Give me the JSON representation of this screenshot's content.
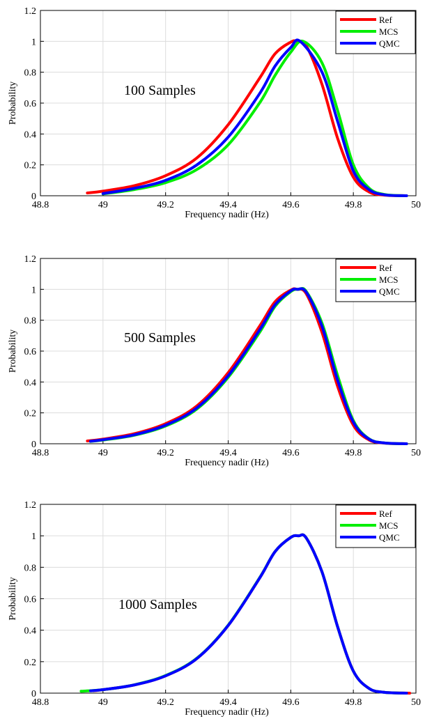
{
  "chart_data": [
    {
      "type": "line",
      "annotation": "100 Samples",
      "xlabel": "Frequency nadir  (Hz)",
      "ylabel": "Probability",
      "xlim": [
        48.8,
        50
      ],
      "ylim": [
        0,
        1.2
      ],
      "xticks": [
        48.8,
        49,
        49.2,
        49.4,
        49.6,
        49.8,
        50
      ],
      "xtick_labels": [
        "48.8",
        "49",
        "49.2",
        "49.4",
        "49.6",
        "49.8",
        "50"
      ],
      "yticks": [
        0,
        0.2,
        0.4,
        0.6,
        0.8,
        1,
        1.2
      ],
      "ytick_labels": [
        "0",
        "0.2",
        "0.4",
        "0.6",
        "0.8",
        "1",
        "1.2"
      ],
      "grid": true,
      "legend_position": "top-right",
      "series": [
        {
          "name": "Ref",
          "color": "#ff0000",
          "x": [
            48.95,
            49.0,
            49.1,
            49.2,
            49.3,
            49.4,
            49.5,
            49.55,
            49.6,
            49.62,
            49.65,
            49.7,
            49.75,
            49.8,
            49.85,
            49.9,
            49.97
          ],
          "y": [
            0.018,
            0.03,
            0.065,
            0.13,
            0.245,
            0.46,
            0.76,
            0.92,
            0.995,
            1.0,
            0.97,
            0.72,
            0.37,
            0.12,
            0.025,
            0.004,
            0.0
          ]
        },
        {
          "name": "MCS",
          "color": "#00ee00",
          "x": [
            49.0,
            49.1,
            49.2,
            49.3,
            49.4,
            49.5,
            49.55,
            49.6,
            49.64,
            49.7,
            49.75,
            49.8,
            49.85,
            49.9,
            49.97
          ],
          "y": [
            0.012,
            0.04,
            0.085,
            0.17,
            0.33,
            0.6,
            0.78,
            0.93,
            1.0,
            0.86,
            0.55,
            0.2,
            0.05,
            0.008,
            0.0
          ]
        },
        {
          "name": "QMC",
          "color": "#0000ff",
          "x": [
            49.0,
            49.1,
            49.2,
            49.3,
            49.4,
            49.5,
            49.55,
            49.6,
            49.63,
            49.7,
            49.75,
            49.8,
            49.85,
            49.9,
            49.97
          ],
          "y": [
            0.014,
            0.048,
            0.1,
            0.2,
            0.38,
            0.66,
            0.84,
            0.96,
            1.0,
            0.8,
            0.48,
            0.16,
            0.04,
            0.006,
            0.0
          ]
        }
      ]
    },
    {
      "type": "line",
      "annotation": "500 Samples",
      "xlabel": "Frequency nadir  (Hz)",
      "ylabel": "Probability",
      "xlim": [
        48.8,
        50
      ],
      "ylim": [
        0,
        1.2
      ],
      "xticks": [
        48.8,
        49,
        49.2,
        49.4,
        49.6,
        49.8,
        50
      ],
      "xtick_labels": [
        "48.8",
        "49",
        "49.2",
        "49.4",
        "49.6",
        "49.8",
        "50"
      ],
      "yticks": [
        0,
        0.2,
        0.4,
        0.6,
        0.8,
        1,
        1.2
      ],
      "ytick_labels": [
        "0",
        "0.2",
        "0.4",
        "0.6",
        "0.8",
        "1",
        "1.2"
      ],
      "grid": true,
      "legend_position": "top-right",
      "series": [
        {
          "name": "Ref",
          "color": "#ff0000",
          "x": [
            48.95,
            49.0,
            49.1,
            49.2,
            49.3,
            49.4,
            49.5,
            49.55,
            49.6,
            49.62,
            49.65,
            49.7,
            49.75,
            49.8,
            49.85,
            49.9,
            49.97
          ],
          "y": [
            0.018,
            0.03,
            0.065,
            0.13,
            0.245,
            0.46,
            0.76,
            0.92,
            0.995,
            1.0,
            0.97,
            0.72,
            0.37,
            0.12,
            0.025,
            0.004,
            0.0
          ]
        },
        {
          "name": "MCS",
          "color": "#00ee00",
          "x": [
            48.96,
            49.0,
            49.1,
            49.2,
            49.3,
            49.4,
            49.5,
            49.55,
            49.6,
            49.625,
            49.65,
            49.7,
            49.75,
            49.8,
            49.85,
            49.9,
            49.97
          ],
          "y": [
            0.015,
            0.024,
            0.055,
            0.115,
            0.225,
            0.43,
            0.72,
            0.89,
            0.985,
            1.0,
            0.985,
            0.78,
            0.44,
            0.15,
            0.032,
            0.005,
            0.0
          ]
        },
        {
          "name": "QMC",
          "color": "#0000ff",
          "x": [
            48.96,
            49.0,
            49.1,
            49.2,
            49.3,
            49.4,
            49.5,
            49.55,
            49.6,
            49.62,
            49.65,
            49.7,
            49.75,
            49.8,
            49.85,
            49.9,
            49.97
          ],
          "y": [
            0.016,
            0.026,
            0.058,
            0.12,
            0.232,
            0.44,
            0.735,
            0.9,
            0.99,
            1.0,
            0.98,
            0.76,
            0.41,
            0.14,
            0.03,
            0.005,
            0.0
          ]
        }
      ]
    },
    {
      "type": "line",
      "annotation": "1000 Samples",
      "xlabel": "Frequency nadir  (Hz)",
      "ylabel": "Probability",
      "xlim": [
        48.8,
        50
      ],
      "ylim": [
        0,
        1.2
      ],
      "xticks": [
        48.8,
        49,
        49.2,
        49.4,
        49.6,
        49.8,
        50
      ],
      "xtick_labels": [
        "48.8",
        "49",
        "49.2",
        "49.4",
        "49.6",
        "49.8",
        "50"
      ],
      "yticks": [
        0,
        0.2,
        0.4,
        0.6,
        0.8,
        1,
        1.2
      ],
      "ytick_labels": [
        "0",
        "0.2",
        "0.4",
        "0.6",
        "0.8",
        "1",
        "1.2"
      ],
      "grid": true,
      "legend_position": "top-right",
      "series": [
        {
          "name": "Ref",
          "color": "#ff0000",
          "x": [
            48.97,
            49.0,
            49.1,
            49.2,
            49.3,
            49.4,
            49.5,
            49.55,
            49.6,
            49.625,
            49.65,
            49.7,
            49.75,
            49.8,
            49.85,
            49.9,
            49.98
          ],
          "y": [
            0.015,
            0.022,
            0.052,
            0.11,
            0.22,
            0.43,
            0.73,
            0.9,
            0.99,
            1.0,
            0.985,
            0.77,
            0.42,
            0.14,
            0.03,
            0.005,
            0.0
          ]
        },
        {
          "name": "MCS",
          "color": "#00ee00",
          "x": [
            48.93,
            49.0,
            49.1,
            49.2,
            49.3,
            49.4,
            49.5,
            49.55,
            49.6,
            49.625,
            49.65,
            49.7,
            49.75,
            49.8,
            49.85,
            49.9,
            49.97
          ],
          "y": [
            0.012,
            0.022,
            0.053,
            0.112,
            0.222,
            0.432,
            0.732,
            0.9,
            0.99,
            1.0,
            0.985,
            0.77,
            0.42,
            0.14,
            0.03,
            0.005,
            0.0
          ]
        },
        {
          "name": "QMC",
          "color": "#0000ff",
          "x": [
            48.96,
            49.0,
            49.1,
            49.2,
            49.3,
            49.4,
            49.5,
            49.55,
            49.6,
            49.625,
            49.65,
            49.7,
            49.75,
            49.8,
            49.85,
            49.9,
            49.97
          ],
          "y": [
            0.015,
            0.022,
            0.052,
            0.11,
            0.22,
            0.43,
            0.73,
            0.9,
            0.99,
            1.0,
            0.985,
            0.77,
            0.42,
            0.14,
            0.03,
            0.005,
            0.0
          ]
        }
      ]
    }
  ]
}
